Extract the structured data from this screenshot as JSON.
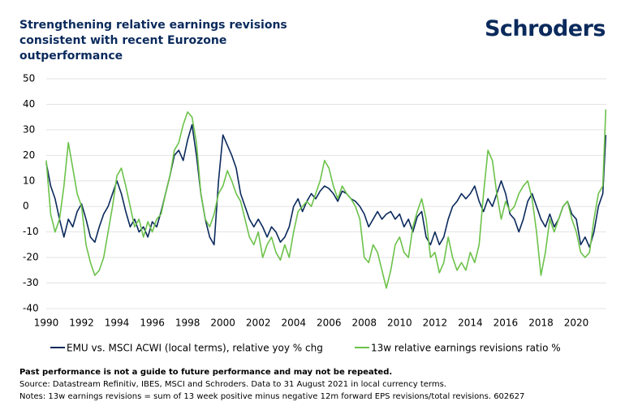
{
  "chart_data": {
    "type": "line",
    "title": "Strengthening relative earnings revisions consistent with recent Eurozone outperformance",
    "brand": "Schroders",
    "footnotes": [
      "Past performance is not a guide to future performance and may not be repeated.",
      "Source: Datastream Refinitiv, IBES, MSCI and Schroders. Data to 31 August 2021 in local currency terms.",
      "Notes: 13w earnings revisions = sum of 13 week positive minus negative 12m forward EPS revisions/total revisions. 602627"
    ],
    "x": [
      1990,
      1990.25,
      1990.5,
      1990.75,
      1991,
      1991.25,
      1991.5,
      1991.75,
      1992,
      1992.25,
      1992.5,
      1992.75,
      1993,
      1993.25,
      1993.5,
      1993.75,
      1994,
      1994.25,
      1994.5,
      1994.75,
      1995,
      1995.25,
      1995.5,
      1995.75,
      1996,
      1996.25,
      1996.5,
      1996.75,
      1997,
      1997.25,
      1997.5,
      1997.75,
      1998,
      1998.25,
      1998.5,
      1998.75,
      1999,
      1999.25,
      1999.5,
      1999.75,
      2000,
      2000.25,
      2000.5,
      2000.75,
      2001,
      2001.25,
      2001.5,
      2001.75,
      2002,
      2002.25,
      2002.5,
      2002.75,
      2003,
      2003.25,
      2003.5,
      2003.75,
      2004,
      2004.25,
      2004.5,
      2004.75,
      2005,
      2005.25,
      2005.5,
      2005.75,
      2006,
      2006.25,
      2006.5,
      2006.75,
      2007,
      2007.25,
      2007.5,
      2007.75,
      2008,
      2008.25,
      2008.5,
      2008.75,
      2009,
      2009.25,
      2009.5,
      2009.75,
      2010,
      2010.25,
      2010.5,
      2010.75,
      2011,
      2011.25,
      2011.5,
      2011.75,
      2012,
      2012.25,
      2012.5,
      2012.75,
      2013,
      2013.25,
      2013.5,
      2013.75,
      2014,
      2014.25,
      2014.5,
      2014.75,
      2015,
      2015.25,
      2015.5,
      2015.75,
      2016,
      2016.25,
      2016.5,
      2016.75,
      2017,
      2017.25,
      2017.5,
      2017.75,
      2018,
      2018.25,
      2018.5,
      2018.75,
      2019,
      2019.25,
      2019.5,
      2019.75,
      2020,
      2020.25,
      2020.5,
      2020.75,
      2021,
      2021.25,
      2021.5,
      2021.67
    ],
    "series": [
      {
        "name": "EMU vs. MSCI ACWI (local terms), relative yoy % chg",
        "color": "#0b2a5c",
        "values": [
          17,
          8,
          3,
          -5,
          -12,
          -5,
          -8,
          -2,
          1,
          -5,
          -12,
          -14,
          -8,
          -3,
          0,
          5,
          10,
          5,
          -2,
          -8,
          -5,
          -10,
          -8,
          -12,
          -6,
          -8,
          -2,
          5,
          12,
          20,
          22,
          18,
          26,
          32,
          20,
          5,
          -5,
          -12,
          -15,
          10,
          28,
          24,
          20,
          15,
          5,
          0,
          -5,
          -8,
          -5,
          -8,
          -12,
          -8,
          -10,
          -14,
          -12,
          -8,
          0,
          3,
          -2,
          2,
          5,
          3,
          6,
          8,
          7,
          5,
          2,
          6,
          5,
          3,
          2,
          0,
          -3,
          -8,
          -5,
          -2,
          -5,
          -3,
          -2,
          -5,
          -3,
          -8,
          -5,
          -10,
          -4,
          -2,
          -12,
          -15,
          -10,
          -15,
          -12,
          -5,
          0,
          2,
          5,
          3,
          5,
          8,
          2,
          -2,
          3,
          0,
          5,
          10,
          5,
          -3,
          -5,
          -10,
          -5,
          2,
          5,
          0,
          -5,
          -8,
          -3,
          -8,
          -5,
          0,
          2,
          -3,
          -5,
          -15,
          -12,
          -16,
          -10,
          0,
          5,
          28
        ]
      },
      {
        "name": "13w relative earnings revisions ratio %",
        "color": "#6cc24a",
        "values": [
          18,
          -3,
          -10,
          -5,
          8,
          25,
          15,
          5,
          0,
          -15,
          -22,
          -27,
          -25,
          -20,
          -10,
          0,
          12,
          15,
          8,
          0,
          -8,
          -5,
          -12,
          -6,
          -10,
          -5,
          -3,
          5,
          12,
          22,
          25,
          32,
          37,
          35,
          25,
          5,
          -5,
          -8,
          -3,
          5,
          8,
          14,
          10,
          5,
          2,
          -5,
          -12,
          -15,
          -10,
          -20,
          -15,
          -12,
          -18,
          -21,
          -15,
          -20,
          -10,
          -2,
          0,
          2,
          0,
          5,
          10,
          18,
          15,
          8,
          3,
          8,
          5,
          3,
          0,
          -5,
          -20,
          -22,
          -15,
          -18,
          -25,
          -32,
          -25,
          -15,
          -12,
          -18,
          -20,
          -8,
          -2,
          3,
          -5,
          -20,
          -18,
          -26,
          -22,
          -12,
          -20,
          -25,
          -22,
          -25,
          -18,
          -22,
          -15,
          5,
          22,
          18,
          5,
          -5,
          2,
          -2,
          0,
          5,
          8,
          10,
          3,
          -10,
          -27,
          -18,
          -5,
          -10,
          -5,
          0,
          2,
          -5,
          -10,
          -18,
          -20,
          -18,
          -5,
          5,
          8,
          38
        ]
      }
    ],
    "xlim": [
      1990,
      2021.7
    ],
    "xticks": [
      1990,
      1992,
      1994,
      1996,
      1998,
      2000,
      2002,
      2004,
      2006,
      2008,
      2010,
      2012,
      2014,
      2016,
      2018,
      2020
    ],
    "ylim": [
      -40,
      50
    ],
    "yticks": [
      -40,
      -30,
      -20,
      -10,
      0,
      10,
      20,
      30,
      40,
      50
    ],
    "grid": true
  }
}
